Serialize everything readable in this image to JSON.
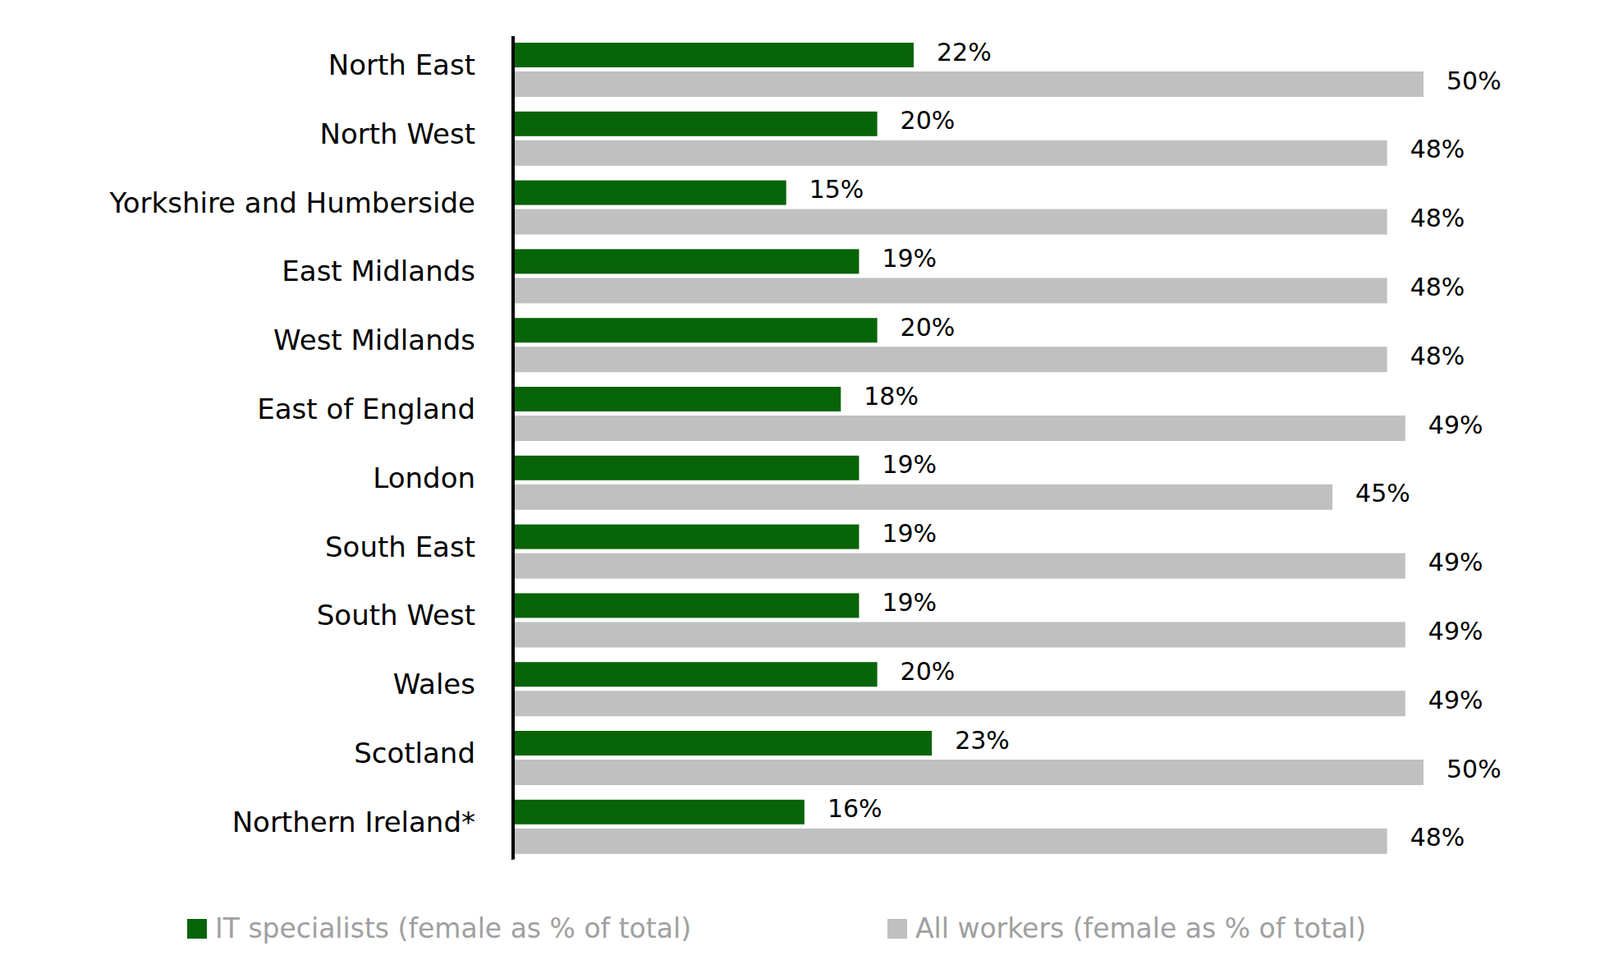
{
  "chart_data": {
    "type": "bar",
    "orientation": "horizontal",
    "categories": [
      "North East",
      "North West",
      "Yorkshire and Humberside",
      "East Midlands",
      "West Midlands",
      "East of England",
      "London",
      "South East",
      "South West",
      "Wales",
      "Scotland",
      "Northern Ireland*"
    ],
    "series": [
      {
        "name": "IT specialists (female as % of total)",
        "color": "#086408",
        "values": [
          22,
          20,
          15,
          19,
          20,
          18,
          19,
          19,
          19,
          20,
          23,
          16
        ],
        "value_labels": [
          "22%",
          "20%",
          "15%",
          "19%",
          "20%",
          "18%",
          "19%",
          "19%",
          "19%",
          "20%",
          "23%",
          "16%"
        ]
      },
      {
        "name": "All workers (female as % of total)",
        "color": "#c0c0c0",
        "values": [
          50,
          48,
          48,
          48,
          48,
          49,
          45,
          49,
          49,
          49,
          50,
          48
        ],
        "value_labels": [
          "50%",
          "48%",
          "48%",
          "48%",
          "48%",
          "49%",
          "45%",
          "49%",
          "49%",
          "49%",
          "50%",
          "48%"
        ]
      }
    ],
    "xlim": [
      0,
      50
    ],
    "data_labels": true,
    "tick_labels": "y",
    "grid": false,
    "legend": "bottom"
  }
}
